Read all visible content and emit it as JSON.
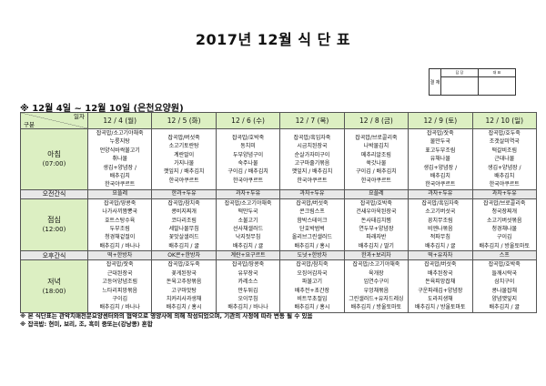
{
  "title": "2017년 12월 식 단 표",
  "approval": {
    "side_label": "결 재",
    "columns": [
      "담 당",
      "대 표"
    ]
  },
  "subtitle": "※ 12월 4일 ~ 12월 10일 (은천요양원)",
  "table": {
    "corner_top": "일자",
    "corner_bottom": "구분",
    "days": [
      "12 / 4 (월)",
      "12 / 5 (화)",
      "12 / 6 (수)",
      "12 / 7 (목)",
      "12 / 8 (금)",
      "12 / 9 (토)",
      "12 / 10 (일)"
    ],
    "rows": [
      {
        "label": "아침",
        "time": "(07:00)",
        "type": "meal",
        "cells": [
          [
            "잡곡밥/소고기야채죽",
            "누룽지탕",
            "언양식바싹불고기",
            "취나물",
            "생김+양념장 /",
            "배추김치",
            "한국야쿠르트"
          ],
          [
            "잡곡밥/버섯죽",
            "소고기토란탕",
            "계란말이",
            "가지나물",
            "깻잎지 / 배추김치",
            "한국야쿠르트"
          ],
          [
            "잡곡밥/호박죽",
            "동치미",
            "두부양념구이",
            "숙주나물",
            "구이김 / 배추김치",
            "한국야쿠르트"
          ],
          [
            "잡곡밥/흑임자죽",
            "시금치된장국",
            "순살가자미구이",
            "고구마줄기볶음",
            "깻잎지 / 배추김치",
            "한국야쿠르트"
          ],
          [
            "잡곡밥/브로콜리죽",
            "나박물김치",
            "메추리알조림",
            "쑥갓나물",
            "구이김 / 배추김치",
            "한국야쿠르트"
          ],
          [
            "잡곡밥/잣죽",
            "물만두국",
            "표고두부조림",
            "유채나물",
            "생김+양념장 /",
            "배추김치",
            "한국야쿠르트"
          ],
          [
            "잡곡밥/호두죽",
            "조갯살미역국",
            "떡갈비조림",
            "근대나물",
            "생김+양념장 /",
            "배추김치",
            "한국야쿠르트"
          ]
        ]
      },
      {
        "label": "오전간식",
        "type": "snack",
        "cells": [
          [
            "요플레"
          ],
          [
            "한과+두유"
          ],
          [
            "과자+두유"
          ],
          [
            "과자+두유"
          ],
          [
            "요플레"
          ],
          [
            "과자+두유"
          ],
          [
            "과자+두유"
          ]
        ]
      },
      {
        "label": "점심",
        "time": "(12:00)",
        "type": "meal",
        "cells": [
          [
            "잡곡밥/땅콩죽",
            "나가사끼짬뽕국",
            "호트스탕수육",
            "두부조림",
            "청경채겉절이",
            "배추김치 / 바나나"
          ],
          [
            "잡곡밥/참치죽",
            "콩비지찌개",
            "코다리조림",
            "세발나물무침",
            "꽃맛살샐러드",
            "배추김치 / 귤"
          ],
          [
            "잡곡밥/소고기야채죽",
            "떡만두국",
            "소불고기",
            "선사채샐러드",
            "낙지젓무침",
            "배추김치 / 귤"
          ],
          [
            "잡곡밥/버섯죽",
            "콘크림스프",
            "함박스테이크",
            "단호박범벅",
            "올리브그린샐러드",
            "배추김치 / 홍시"
          ],
          [
            "잡곡밥/호박죽",
            "건새우아욱된장국",
            "돈사태김치찜",
            "연두부+양념장",
            "파래자반",
            "배추김치 / 딸기"
          ],
          [
            "잡곡밥/흑임자죽",
            "소고기버섯국",
            "꽁치무조림",
            "비엔나볶음",
            "적파무침",
            "배추김치 / 귤"
          ],
          [
            "잡곡밥/브로콜리죽",
            "청국장찌개",
            "소고기버섯볶음",
            "청경채나물",
            "구이김",
            "배추김치 / 방울토마토"
          ]
        ]
      },
      {
        "label": "오후간식",
        "type": "snack",
        "cells": [
          [
            "떡+한방차"
          ],
          [
            "OK콘+한방차"
          ],
          [
            "계란+요구르트"
          ],
          [
            "도넛+한방차"
          ],
          [
            "한과+보리차"
          ],
          [
            "떡+유자차"
          ],
          [
            "스프"
          ]
        ]
      },
      {
        "label": "저녁",
        "time": "(18:00)",
        "type": "meal",
        "cells": [
          [
            "잡곡밥/잣죽",
            "근대된장국",
            "고등어양념조림",
            "느타리피망볶음",
            "구이김",
            "배추김치 / 바나나"
          ],
          [
            "잡곡밥/호두죽",
            "꽃게된장국",
            "돈육고추장볶음",
            "고구마맛탕",
            "치커리사과생채",
            "배추김치 / 홍시"
          ],
          [
            "잡곡밥/땅콩죽",
            "유부장국",
            "카레소스",
            "만두튀김",
            "오이무침",
            "배추김치 / 바나나"
          ],
          [
            "잡곡밥/참치죽",
            "오징어감자국",
            "파불고기",
            "배추전+초간장",
            "비트무초절임",
            "배추김치 / 홍시"
          ],
          [
            "잡곡밥/소고기야채죽",
            "육개장",
            "임연수구이",
            "우엉채볶음",
            "그린샐러드+유자드레싱",
            "배추김치 / 방울토마토"
          ],
          [
            "잡곡밥/버섯죽",
            "배추된장국",
            "돈육피망잡채",
            "구운파래김+양념장",
            "도라지생채",
            "배추김치 / 방울토마토"
          ],
          [
            "잡곡밥/호박죽",
            "들깨시락국",
            "삼치구이",
            "콩나물잡채",
            "양념깻잎지",
            "배추김치 / 귤"
          ]
        ]
      }
    ]
  },
  "notes": [
    "※ 본 식단표는 관악치매전문요양센터와의 협약으로 영양사에 의해 작성되었으며, 기관의 사정에 따라 변동 될 수 있음",
    "※ 잡곡밥: 현미, 보리, 조, 흑미 중또는(강낭콩) 혼합"
  ],
  "colors": {
    "header_green": "#dcefc2",
    "snack_gray": "#e8e8e8"
  }
}
